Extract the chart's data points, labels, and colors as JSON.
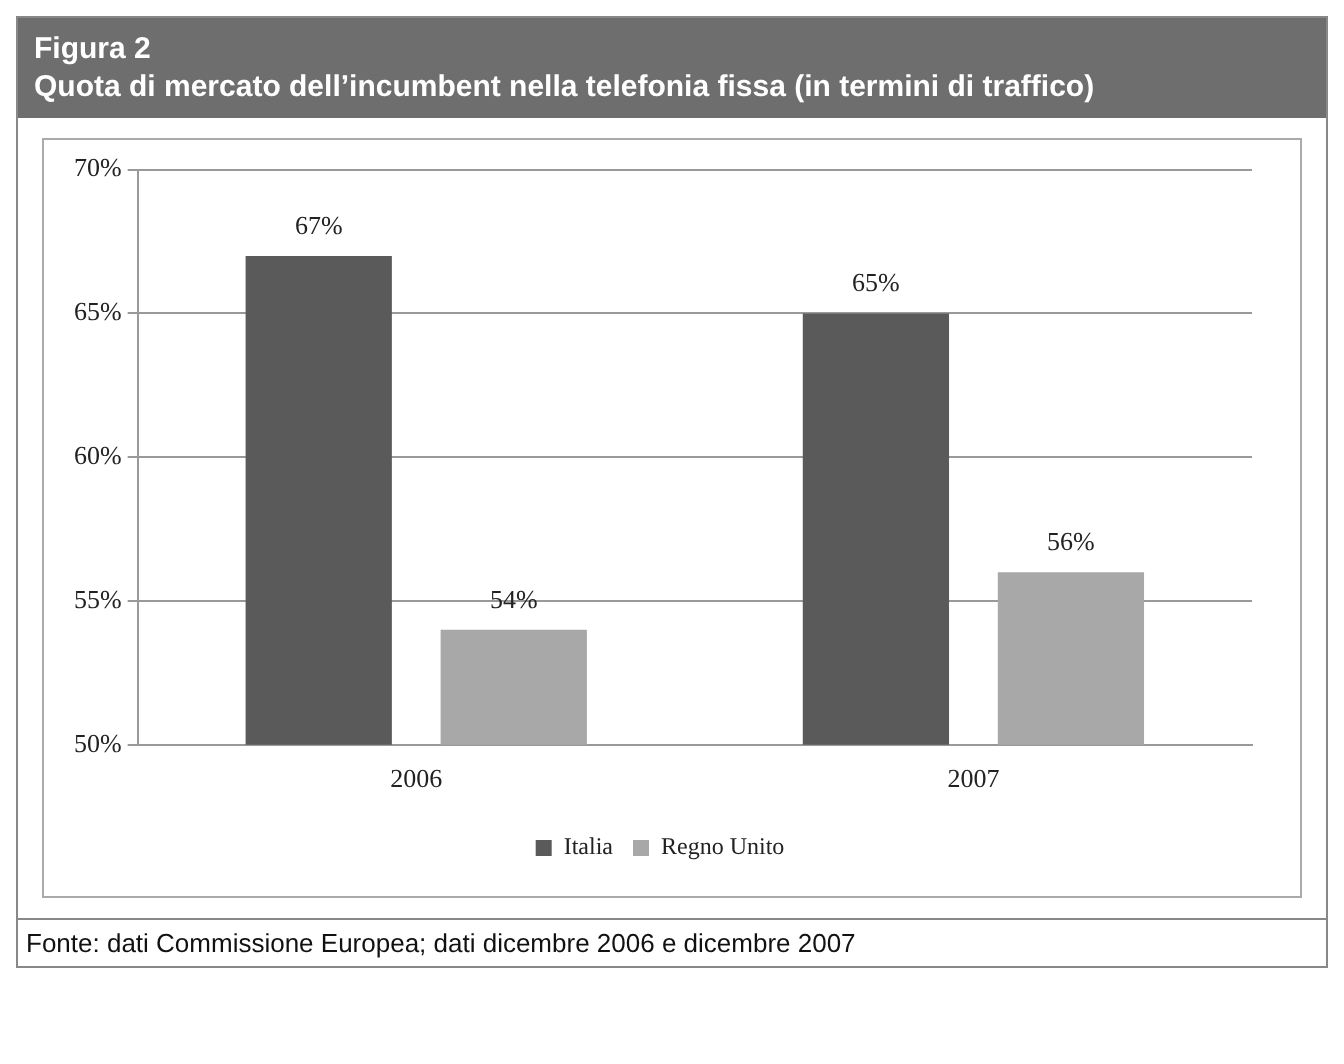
{
  "chart_data": {
    "type": "bar",
    "title": "Figura 2",
    "subtitle": "Quota di mercato dell’incumbent nella telefonia fissa (in termini di traffico)",
    "categories": [
      "2006",
      "2007"
    ],
    "series": [
      {
        "name": "Italia",
        "color": "#5a5a5a",
        "values": [
          67,
          65
        ],
        "value_labels": [
          "67%",
          "65%"
        ]
      },
      {
        "name": "Regno Unito",
        "color": "#a8a8a8",
        "values": [
          54,
          56
        ],
        "value_labels": [
          "54%",
          "56%"
        ]
      }
    ],
    "ylim": [
      50,
      70
    ],
    "yticks": [
      {
        "value": 50,
        "label": "50%"
      },
      {
        "value": 55,
        "label": "55%"
      },
      {
        "value": 60,
        "label": "60%"
      },
      {
        "value": 65,
        "label": "65%"
      },
      {
        "value": 70,
        "label": "70%"
      }
    ],
    "grid": "y",
    "legend": "bottom",
    "annotations": [
      "Fonte: dati Commissione Europea; dati dicembre 2006 e dicembre 2007"
    ]
  }
}
